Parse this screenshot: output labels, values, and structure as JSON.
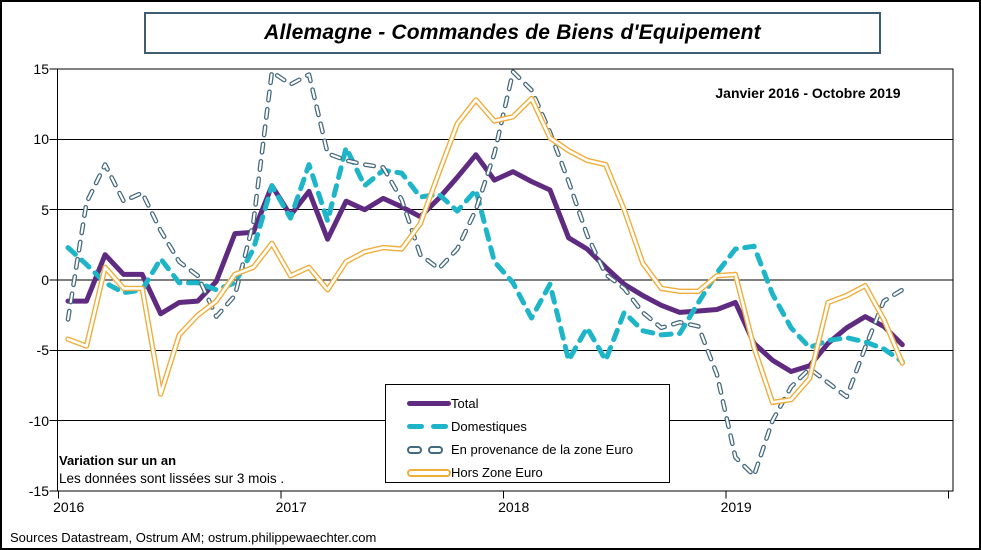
{
  "title": "Allemagne - Commandes de Biens d'Equipement",
  "annotations": {
    "period": "Janvier 2016 - Octobre 2019",
    "note_bold": "Variation sur un an",
    "note": "Les données sont lissées sur 3 mois .",
    "source": "Sources Datastream, Ostrum AM; ostrum.philippewaechter.com"
  },
  "chart_data": {
    "type": "line",
    "title": "Allemagne - Commandes de Biens d'Equipement",
    "subtitle": "Janvier 2016 - Octobre 2019",
    "ylabel": "Variation sur un an (%), données lissées sur 3 mois",
    "ylim": [
      -15,
      15
    ],
    "yticks": [
      15,
      10,
      5,
      0,
      -5,
      -10,
      -15
    ],
    "year_labels": [
      "2016",
      "2017",
      "2018",
      "2019"
    ],
    "grid": "horizontal",
    "legend_position": "inside-bottom-center",
    "categories": [
      "2016-01",
      "2016-02",
      "2016-03",
      "2016-04",
      "2016-05",
      "2016-06",
      "2016-07",
      "2016-08",
      "2016-09",
      "2016-10",
      "2016-11",
      "2016-12",
      "2017-01",
      "2017-02",
      "2017-03",
      "2017-04",
      "2017-05",
      "2017-06",
      "2017-07",
      "2017-08",
      "2017-09",
      "2017-10",
      "2017-11",
      "2017-12",
      "2018-01",
      "2018-02",
      "2018-03",
      "2018-04",
      "2018-05",
      "2018-06",
      "2018-07",
      "2018-08",
      "2018-09",
      "2018-10",
      "2018-11",
      "2018-12",
      "2019-01",
      "2019-02",
      "2019-03",
      "2019-04",
      "2019-05",
      "2019-06",
      "2019-07",
      "2019-08",
      "2019-09",
      "2019-10"
    ],
    "series": [
      {
        "name": "Total",
        "color": "#5F2B81",
        "style": "solid-thick",
        "values": [
          -1.5,
          -1.5,
          1.8,
          0.4,
          0.4,
          -2.4,
          -1.6,
          -1.5,
          -0.1,
          3.3,
          3.4,
          6.7,
          4.6,
          6.3,
          2.9,
          5.6,
          5.0,
          5.8,
          5.2,
          4.5,
          5.8,
          7.3,
          8.9,
          7.1,
          7.7,
          7.0,
          6.4,
          3.0,
          2.2,
          0.9,
          -0.3,
          -1.1,
          -1.8,
          -2.3,
          -2.2,
          -2.1,
          -1.6,
          -4.5,
          -5.7,
          -6.5,
          -6.1,
          -4.5,
          -3.4,
          -2.6,
          -3.3,
          -4.6
        ]
      },
      {
        "name": "Domestiques",
        "color": "#1FB5C9",
        "style": "dashed-thick",
        "values": [
          2.3,
          1.1,
          -0.2,
          -0.9,
          -0.7,
          1.5,
          -0.2,
          -0.2,
          -0.7,
          -0.2,
          2.2,
          6.7,
          4.4,
          8.2,
          4.2,
          9.4,
          6.7,
          7.8,
          7.6,
          5.9,
          6.1,
          4.9,
          6.4,
          1.3,
          -0.2,
          -2.7,
          -0.3,
          -5.7,
          -3.4,
          -5.7,
          -2.3,
          -3.6,
          -3.9,
          -3.8,
          -1.6,
          0.5,
          2.2,
          2.4,
          -1.0,
          -3.4,
          -4.8,
          -4.3,
          -4.1,
          -4.4,
          -4.9,
          -5.8
        ]
      },
      {
        "name": "En provenance de la zone Euro",
        "color": "#44697E",
        "style": "dashed-hollow",
        "values": [
          -2.8,
          5.5,
          8.2,
          5.6,
          6.2,
          3.5,
          1.3,
          0.3,
          -2.6,
          -1.1,
          4.1,
          14.8,
          13.9,
          14.6,
          9.0,
          8.5,
          8.2,
          8.0,
          5.7,
          1.8,
          0.8,
          2.2,
          5.0,
          9.0,
          14.8,
          13.5,
          10.5,
          7.0,
          3.2,
          0.4,
          -0.6,
          -2.3,
          -3.4,
          -3.0,
          -3.3,
          -6.7,
          -12.6,
          -13.9,
          -10.0,
          -7.6,
          -6.3,
          -7.3,
          -8.3,
          -4.8,
          -1.5,
          -0.7
        ]
      },
      {
        "name": "Hors Zone Euro",
        "color": "#EFAE3C",
        "style": "solid-hollow",
        "values": [
          -4.2,
          -4.7,
          0.9,
          -0.6,
          -0.6,
          -8.1,
          -3.9,
          -2.5,
          -1.5,
          0.4,
          0.9,
          2.6,
          0.3,
          0.9,
          -0.7,
          1.3,
          2.0,
          2.3,
          2.2,
          4.0,
          7.6,
          11.1,
          12.8,
          11.3,
          11.6,
          12.9,
          10.1,
          9.2,
          8.5,
          8.2,
          5.0,
          1.2,
          -0.6,
          -0.8,
          -0.8,
          0.3,
          0.4,
          -4.8,
          -8.7,
          -8.5,
          -7.0,
          -1.6,
          -1.1,
          -0.4,
          -2.8,
          -5.9
        ]
      }
    ]
  }
}
